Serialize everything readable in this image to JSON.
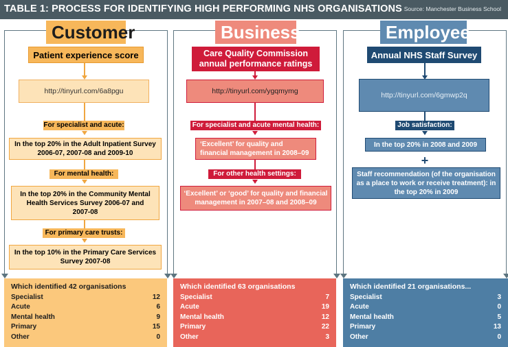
{
  "header": {
    "title": "TABLE 1: PROCESS FOR IDENTIFYING HIGH PERFORMING NHS ORGANISATIONS",
    "source": "Source: Manchester Business School"
  },
  "colors": {
    "customer_light": "#fde3b8",
    "customer_dark": "#f7b75a",
    "business_light": "#ee8a7c",
    "business_dark": "#cf1b3a",
    "employee_light": "#5f8ab0",
    "employee_dark": "#1f4a72"
  },
  "customer": {
    "title": "Customer",
    "subtitle": "Patient experience score",
    "link": "http://tinyurl.com/6a8pgu",
    "label1": "For specialist and acute:",
    "box1": "In the top 20% in the Adult Inpatient Survey 2006-07, 2007-08 and 2009-10",
    "label2": "For mental health:",
    "box2": "In the top 20% in the Community Mental Health Services Survey 2006-07 and 2007-08",
    "label3": "For primary care trusts:",
    "box3": "In the top 10% in the Primary Care Services Survey 2007-08",
    "summary": {
      "title": "Which identified 42 organisations",
      "rows": [
        {
          "label": "Specialist",
          "value": "12"
        },
        {
          "label": "Acute",
          "value": "6"
        },
        {
          "label": "Mental health",
          "value": "9"
        },
        {
          "label": "Primary",
          "value": "15"
        },
        {
          "label": "Other",
          "value": "0"
        }
      ]
    }
  },
  "business": {
    "title": "Business",
    "subtitle_line1": "Care Quality Commission",
    "subtitle_line2": "annual performance ratings",
    "link": "http://tinyurl.com/ygqmymg",
    "label1": "For specialist and acute mental health:",
    "box1": "‘Excellent’ for quality and financial management in 2008–09",
    "label2": "For other health settings:",
    "box2": "‘Excellent’ or ‘good’ for quality and financial management in 2007–08 and 2008–09",
    "summary": {
      "title": "Which identified 63 organisations",
      "rows": [
        {
          "label": "Specialist",
          "value": "7"
        },
        {
          "label": "Acute",
          "value": "19"
        },
        {
          "label": "Mental health",
          "value": "12"
        },
        {
          "label": "Primary",
          "value": "22"
        },
        {
          "label": "Other",
          "value": "3"
        }
      ]
    }
  },
  "employee": {
    "title": "Employee",
    "subtitle": "Annual NHS Staff Survey",
    "link": "http://tinyurl.com/6gmwp2q",
    "label1": "Job satisfaction:",
    "box1": "In the top 20% in 2008 and 2009",
    "plus": "+",
    "box2": "Staff recommendation (of the organisation as a place to work or receive treatment): in the top 20% in 2009",
    "summary": {
      "title": "Which identified 21 organisations...",
      "rows": [
        {
          "label": "Specialist",
          "value": "3"
        },
        {
          "label": "Acute",
          "value": "0"
        },
        {
          "label": "Mental health",
          "value": "5"
        },
        {
          "label": "Primary",
          "value": "13"
        },
        {
          "label": "Other",
          "value": "0"
        }
      ]
    }
  }
}
